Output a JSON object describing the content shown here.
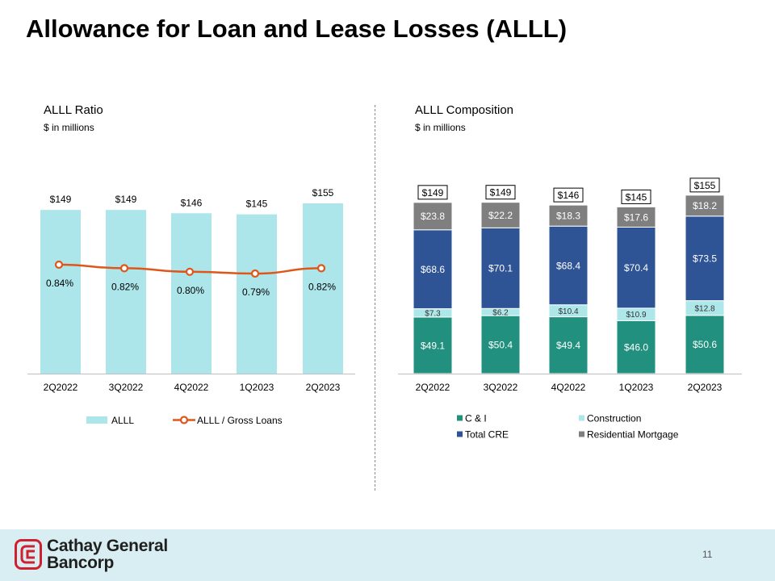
{
  "page_title": "Allowance for Loan and Lease Losses (ALLL)",
  "page_number": "11",
  "logo": {
    "line1": "Cathay General",
    "line2": "Bancorp"
  },
  "colors": {
    "bar_alll": "#ade6ea",
    "line_ratio": "#e0561a",
    "ci": "#21907e",
    "construction": "#aee7ea",
    "total_cre": "#2e5496",
    "residential": "#7f7f7f",
    "footer_bg": "#d9eef2",
    "logo_red": "#d0202e"
  },
  "left_panel": {
    "title": "ALLL Ratio",
    "subtitle": "$ in millions"
  },
  "right_panel": {
    "title": "ALLL Composition",
    "subtitle": "$ in millions"
  },
  "chart_data": [
    {
      "type": "bar",
      "title": "ALLL Ratio",
      "subtitle": "$ in millions",
      "categories": [
        "2Q2022",
        "3Q2022",
        "4Q2022",
        "1Q2023",
        "2Q2023"
      ],
      "series": [
        {
          "name": "ALLL",
          "kind": "bar",
          "values": [
            149,
            149,
            146,
            145,
            155
          ],
          "labels": [
            "$149",
            "$149",
            "$146",
            "$145",
            "$155"
          ]
        },
        {
          "name": "ALLL / Gross Loans",
          "kind": "line",
          "values": [
            0.84,
            0.82,
            0.8,
            0.79,
            0.82
          ],
          "labels": [
            "0.84%",
            "0.82%",
            "0.80%",
            "0.79%",
            "0.82%"
          ]
        }
      ],
      "legend": "bottom",
      "grid": false
    },
    {
      "type": "bar",
      "stacked": true,
      "title": "ALLL Composition",
      "subtitle": "$ in millions",
      "categories": [
        "2Q2022",
        "3Q2022",
        "4Q2022",
        "1Q2023",
        "2Q2023"
      ],
      "series": [
        {
          "name": "C & I",
          "values": [
            49.1,
            50.4,
            49.4,
            46.0,
            50.6
          ],
          "labels": [
            "$49.1",
            "$50.4",
            "$49.4",
            "$46.0",
            "$50.6"
          ]
        },
        {
          "name": "Construction",
          "values": [
            7.3,
            6.2,
            10.4,
            10.9,
            12.8
          ],
          "labels": [
            "$7.3",
            "$6.2",
            "$10.4",
            "$10.9",
            "$12.8"
          ]
        },
        {
          "name": "Total CRE",
          "values": [
            68.6,
            70.1,
            68.4,
            70.4,
            73.5
          ],
          "labels": [
            "$68.6",
            "$70.1",
            "$68.4",
            "$70.4",
            "$73.5"
          ]
        },
        {
          "name": "Residential Mortgage",
          "values": [
            23.8,
            22.2,
            18.3,
            17.6,
            18.2
          ],
          "labels": [
            "$23.8",
            "$22.2",
            "$18.3",
            "$17.6",
            "$18.2"
          ]
        }
      ],
      "totals": [
        "$149",
        "$149",
        "$146",
        "$145",
        "$155"
      ],
      "legend": "bottom",
      "grid": false
    }
  ]
}
